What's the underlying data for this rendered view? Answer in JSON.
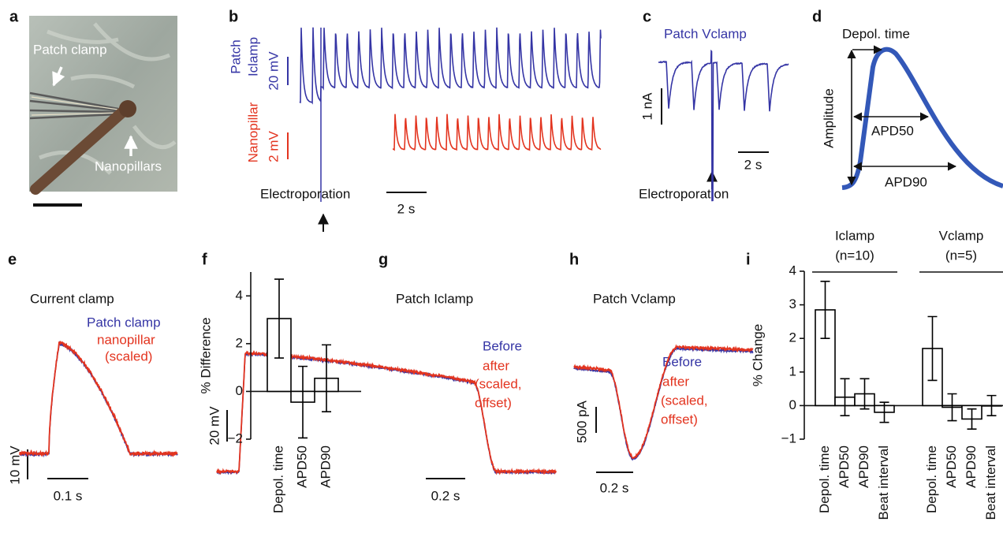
{
  "panels": {
    "a": {
      "letter": "a",
      "pipette": "Patch clamp",
      "pillars": "Nanopillars"
    },
    "b": {
      "letter": "b",
      "patch": "Patch",
      "iclamp": "Iclamp",
      "scale_v1": "20 mV",
      "nanopillar": "Nanopillar",
      "scale_v2": "2 mV",
      "event": "Electroporation",
      "scale_t": "2 s"
    },
    "c": {
      "letter": "c",
      "title": "Patch Vclamp",
      "scale_i": "1 nA",
      "scale_t": "2 s",
      "event": "Electroporation"
    },
    "d": {
      "letter": "d",
      "depol": "Depol. time",
      "amplitude": "Amplitude",
      "apd50": "APD50",
      "apd90": "APD90"
    },
    "e": {
      "letter": "e",
      "title": "Current clamp",
      "legend_1": "Patch clamp",
      "legend_2": [
        "nanopillar",
        "(scaled)"
      ],
      "scale_v": "10 mV",
      "scale_t": "0.1 s"
    },
    "f": {
      "letter": "f"
    },
    "g": {
      "letter": "g",
      "title": "Patch Iclamp",
      "legend_1": "Before",
      "legend_2": [
        "after",
        "(scaled,",
        "offset)"
      ],
      "scale_v": "20 mV",
      "scale_t": "0.2 s"
    },
    "h": {
      "letter": "h",
      "title": "Patch Vclamp",
      "legend_1": "Before",
      "legend_2": [
        "after",
        "(scaled,",
        "offset)"
      ],
      "scale_i": "500 pA",
      "scale_t": "0.2 s"
    },
    "i": {
      "letter": "i"
    }
  },
  "chart_data": [
    {
      "type": "bar",
      "y_label": "% Difference",
      "categories": [
        "Depol. time",
        "APD50",
        "APD90"
      ],
      "values": [
        3.05,
        -0.45,
        0.55
      ],
      "errors": [
        1.65,
        1.5,
        1.4
      ],
      "ylim": [
        -2,
        5
      ],
      "yticks": [
        {
          "value": -2,
          "label": "−2"
        },
        0,
        2,
        4
      ],
      "color": "#ffffff",
      "edge_color": "#000000"
    },
    {
      "type": "grouped-bar",
      "y_label": "% Change",
      "categories": [
        "Depol. time",
        "APD50",
        "APD90",
        "Beat interval"
      ],
      "series": [
        {
          "name": "Iclamp",
          "note": "(n=10)",
          "values": [
            2.85,
            0.25,
            0.35,
            -0.2
          ],
          "errors": [
            0.85,
            0.55,
            0.45,
            0.3
          ]
        },
        {
          "name": "Vclamp",
          "note": "(n=5)",
          "values": [
            1.7,
            -0.05,
            -0.4,
            0.0
          ],
          "errors": [
            0.95,
            0.4,
            0.3,
            0.3
          ]
        }
      ],
      "ylim": [
        -1,
        4
      ],
      "yticks": [
        {
          "value": -1,
          "label": "−1"
        },
        0,
        1,
        2,
        3,
        4
      ],
      "color": "#ffffff",
      "edge_color": "#000000"
    }
  ]
}
